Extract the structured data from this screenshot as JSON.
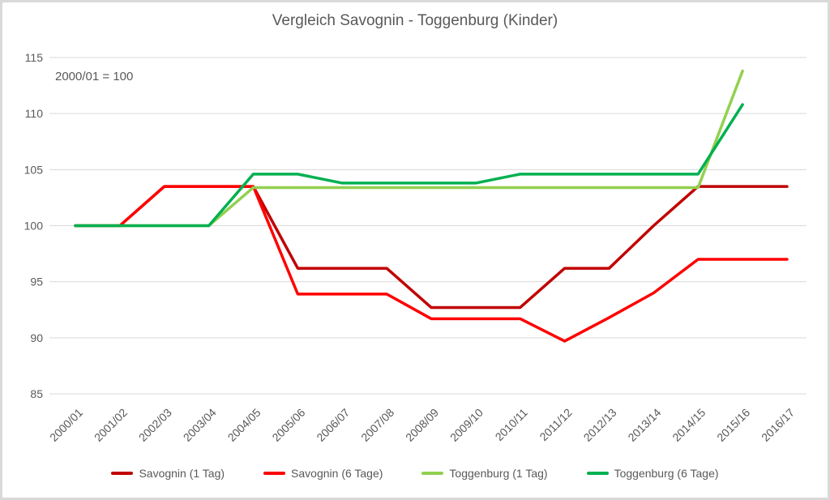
{
  "title": "Vergleich Savognin - Toggenburg (Kinder)",
  "annotation": "2000/01 = 100",
  "chart_data": {
    "type": "line",
    "title": "Vergleich Savognin - Toggenburg (Kinder)",
    "subtitle_annotation": "2000/01 = 100",
    "xlabel": "",
    "ylabel": "",
    "grid": true,
    "legend_position": "bottom",
    "ylim": [
      85,
      115
    ],
    "ytick_step": 5,
    "ytick_labels": [
      "85",
      "90",
      "95",
      "100",
      "105",
      "110",
      "115"
    ],
    "categories": [
      "2000/01",
      "2001/02",
      "2002/03",
      "2003/04",
      "2004/05",
      "2005/06",
      "2006/07",
      "2007/08",
      "2008/09",
      "2009/10",
      "2010/11",
      "2011/12",
      "2012/13",
      "2013/14",
      "2014/15",
      "2015/16",
      "2016/17"
    ],
    "series": [
      {
        "name": "Savognin (1 Tag)",
        "color": "#C00000",
        "values": [
          100,
          100,
          103.5,
          103.5,
          103.5,
          96.2,
          96.2,
          96.2,
          92.7,
          92.7,
          92.7,
          96.2,
          96.2,
          100,
          103.5,
          103.5,
          103.5
        ]
      },
      {
        "name": "Savognin (6 Tage)",
        "color": "#FF0000",
        "values": [
          100,
          100,
          103.5,
          103.5,
          103.5,
          93.9,
          93.9,
          93.9,
          91.7,
          91.7,
          91.7,
          89.7,
          91.8,
          94.0,
          97.0,
          97.0,
          97.0
        ]
      },
      {
        "name": "Toggenburg (1 Tag)",
        "color": "#92D050",
        "values": [
          100,
          100,
          100,
          100,
          103.4,
          103.4,
          103.4,
          103.4,
          103.4,
          103.4,
          103.4,
          103.4,
          103.4,
          103.4,
          103.4,
          113.8,
          null
        ]
      },
      {
        "name": "Toggenburg (6 Tage)",
        "color": "#00B050",
        "values": [
          100,
          100,
          100,
          100,
          104.6,
          104.6,
          103.8,
          103.8,
          103.8,
          103.8,
          104.6,
          104.6,
          104.6,
          104.6,
          104.6,
          110.8,
          null
        ]
      }
    ]
  }
}
